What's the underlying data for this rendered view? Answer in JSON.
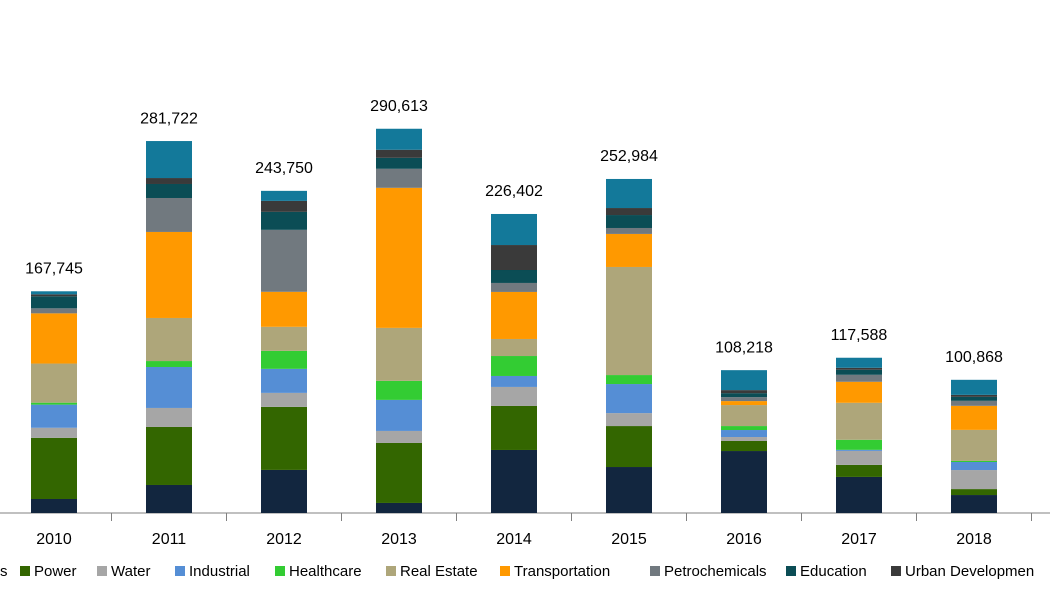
{
  "chart_data": {
    "type": "stacked_bar",
    "categories": [
      "2010",
      "2011",
      "2012",
      "2013",
      "2014",
      "2015",
      "2016",
      "2017",
      "2018"
    ],
    "totals": [
      167745,
      281722,
      243750,
      290613,
      226402,
      252984,
      108218,
      117588,
      100868
    ],
    "totals_labels": [
      "167,745",
      "281,722",
      "243,750",
      "290,613",
      "226,402",
      "252,984",
      "108,218",
      "117,588",
      "100,868"
    ],
    "series": [
      {
        "name": "s",
        "color": "#12263f",
        "values": [
          10600,
          21200,
          32600,
          7600,
          47700,
          34800,
          46900,
          27300,
          13600
        ]
      },
      {
        "name": "Power",
        "color": "#336600",
        "values": [
          46300,
          43900,
          47700,
          45400,
          33300,
          31000,
          7600,
          9100,
          4500
        ]
      },
      {
        "name": "Water",
        "color": "#a6a6a6",
        "values": [
          7600,
          14400,
          10600,
          9100,
          14400,
          9800,
          3000,
          10600,
          14400
        ]
      },
      {
        "name": "Industrial",
        "color": "#558ed5",
        "values": [
          17500,
          31000,
          18200,
          23500,
          8300,
          22000,
          5300,
          800,
          6100
        ]
      },
      {
        "name": "Healthcare",
        "color": "#33cc33",
        "values": [
          1500,
          4500,
          13600,
          14400,
          15100,
          6800,
          3000,
          7600,
          800
        ]
      },
      {
        "name": "Real Estate",
        "color": "#aea67a",
        "values": [
          29600,
          32600,
          18200,
          40100,
          12900,
          81800,
          15900,
          28000,
          23500
        ]
      },
      {
        "name": "Transportation",
        "color": "#ff9900",
        "values": [
          38000,
          65100,
          26500,
          106000,
          35600,
          25000,
          3000,
          15900,
          18200
        ]
      },
      {
        "name": "Petrochemicals",
        "color": "#71797f",
        "values": [
          3800,
          25700,
          46900,
          14400,
          6800,
          4500,
          3000,
          5300,
          3800
        ]
      },
      {
        "name": "Education",
        "color": "#0b4d55",
        "values": [
          9100,
          10600,
          13600,
          8300,
          9800,
          9800,
          3000,
          3800,
          3000
        ]
      },
      {
        "name": "Urban Developmen",
        "color": "#3a3a3a",
        "values": [
          1500,
          4500,
          8300,
          6100,
          18900,
          5300,
          2300,
          1500,
          1500
        ]
      },
      {
        "color": "#13799a",
        "values": [
          2300,
          28000,
          7600,
          15900,
          23500,
          22000,
          15100,
          7600,
          11400
        ]
      }
    ]
  }
}
